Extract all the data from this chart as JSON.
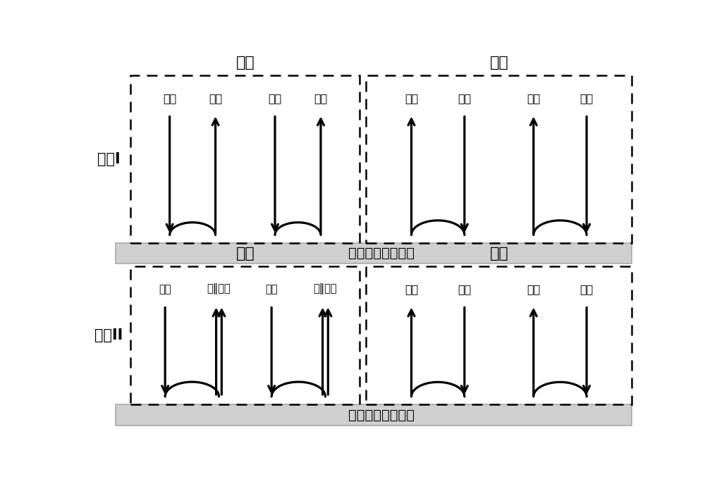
{
  "bg_color": "#ffffff",
  "device_label": "圆极化旋向调控器",
  "row1_label": "频段I",
  "row2_label": "频段II",
  "left_title1": "导通",
  "right_title1": "断开",
  "left_title2": "导通",
  "right_title2": "断开",
  "row1_on_labels": [
    "右旋",
    "左旋",
    "左旋",
    "右旋"
  ],
  "row1_off_labels": [
    "右旋",
    "右旋",
    "左旋",
    "左旋"
  ],
  "row2_on_labels": [
    "右旋",
    "左‖右旋",
    "左旋",
    "右‖左旋"
  ],
  "row2_off_labels": [
    "右旋",
    "右旋",
    "左旋",
    "左旋"
  ]
}
